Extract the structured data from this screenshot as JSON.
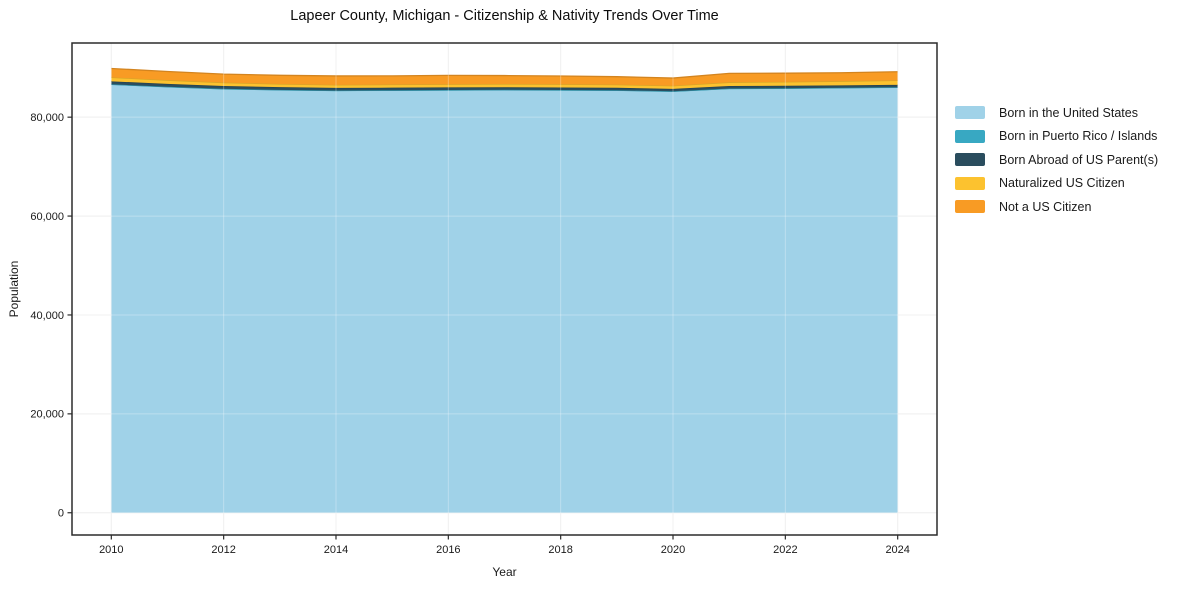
{
  "chart_data": {
    "type": "area",
    "stacked": true,
    "title": "Lapeer County, Michigan - Citizenship & Nativity Trends Over Time",
    "xlabel": "Year",
    "ylabel": "Population",
    "x": [
      2010,
      2011,
      2012,
      2013,
      2014,
      2015,
      2016,
      2017,
      2018,
      2019,
      2020,
      2021,
      2022,
      2023,
      2024
    ],
    "series": [
      {
        "name": "Born in the United States",
        "color": "#a0d2e8",
        "values": [
          86500,
          86000,
          85600,
          85400,
          85250,
          85300,
          85350,
          85400,
          85350,
          85300,
          85100,
          85650,
          85700,
          85800,
          85900
        ]
      },
      {
        "name": "Born in Puerto Rico / Islands",
        "color": "#38a8c2",
        "values": [
          150,
          150,
          140,
          130,
          140,
          150,
          150,
          140,
          150,
          150,
          140,
          150,
          160,
          150,
          160
        ]
      },
      {
        "name": "Born Abroad of US Parent(s)",
        "color": "#2a4d5e",
        "values": [
          600,
          580,
          560,
          540,
          530,
          520,
          520,
          510,
          500,
          490,
          480,
          500,
          490,
          480,
          480
        ]
      },
      {
        "name": "Naturalized US Citizen",
        "color": "#fcc22f",
        "values": [
          800,
          750,
          700,
          650,
          620,
          630,
          650,
          660,
          670,
          650,
          640,
          750,
          800,
          850,
          900
        ]
      },
      {
        "name": "Not a US Citizen",
        "color": "#f89b24",
        "values": [
          1800,
          1750,
          1700,
          1750,
          1800,
          1750,
          1780,
          1700,
          1650,
          1600,
          1550,
          1800,
          1750,
          1700,
          1750
        ]
      }
    ],
    "xticks": [
      2010,
      2012,
      2014,
      2016,
      2018,
      2020,
      2022,
      2024
    ],
    "yticks": [
      0,
      20000,
      40000,
      60000,
      80000
    ],
    "xlim": [
      2009.3,
      2024.7
    ],
    "ylim": [
      -4500,
      95000
    ],
    "grid": true,
    "legend_position": "right",
    "colors": {
      "grid": "#eaeaea",
      "grid_over_area": "rgba(255,255,255,0.30)",
      "spine": "#2b2b2b",
      "background": "#ffffff"
    }
  }
}
